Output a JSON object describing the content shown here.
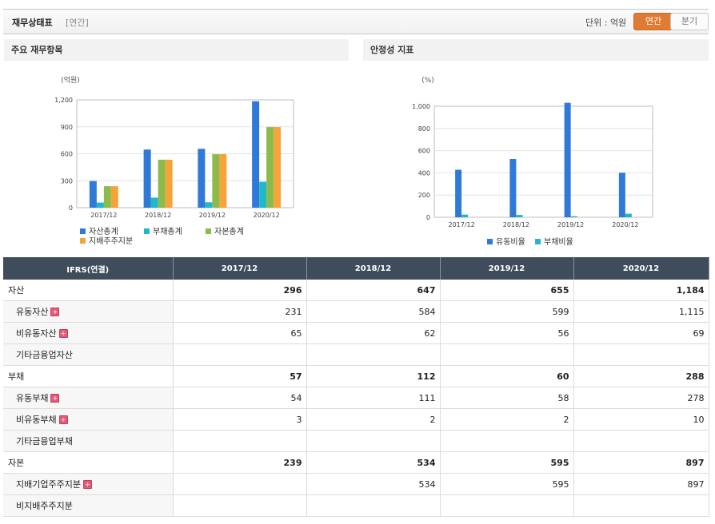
{
  "header": {
    "title": "재무상태표",
    "period": "[연간]",
    "unit_label": "단위 : 억원",
    "tab_annual": "연간",
    "tab_quarter": "분기"
  },
  "chart_data": [
    {
      "type": "bar",
      "title": "주요 재무항목",
      "ylabel": "(억원)",
      "ylim": [
        0,
        1200
      ],
      "yticks": [
        "0",
        "300",
        "600",
        "900",
        "1,200"
      ],
      "categories": [
        "2017/12",
        "2018/12",
        "2019/12",
        "2020/12"
      ],
      "series": [
        {
          "name": "자산총계",
          "color": "#2f79d8",
          "values": [
            296,
            647,
            655,
            1184
          ]
        },
        {
          "name": "부채총계",
          "color": "#22b8cc",
          "values": [
            57,
            112,
            60,
            288
          ]
        },
        {
          "name": "자본총계",
          "color": "#8cbb4c",
          "values": [
            239,
            534,
            595,
            897
          ]
        },
        {
          "name": "지배주주지분",
          "color": "#f6a43a",
          "values": [
            239,
            534,
            595,
            897
          ]
        }
      ],
      "legend": "bottom-left",
      "grid": true
    },
    {
      "type": "bar",
      "title": "안정성 지표",
      "ylabel": "(%)",
      "ylim": [
        0,
        1000
      ],
      "yticks": [
        "0",
        "200",
        "400",
        "600",
        "800",
        "1,000"
      ],
      "categories": [
        "2017/12",
        "2018/12",
        "2019/12",
        "2020/12"
      ],
      "series": [
        {
          "name": "유동비율",
          "color": "#2f79d8",
          "values": [
            428,
            525,
            1031,
            401
          ]
        },
        {
          "name": "부채비율",
          "color": "#22b8cc",
          "values": [
            24,
            21,
            10,
            32
          ]
        }
      ],
      "legend": "bottom-center",
      "grid": true
    }
  ],
  "table": {
    "header": [
      "IFRS(연결)",
      "2017/12",
      "2018/12",
      "2019/12",
      "2020/12"
    ],
    "rows": [
      {
        "label": "자산",
        "type": "main",
        "expand": false,
        "values": [
          "296",
          "647",
          "655",
          "1,184"
        ]
      },
      {
        "label": "유동자산",
        "type": "sub",
        "expand": true,
        "values": [
          "231",
          "584",
          "599",
          "1,115"
        ]
      },
      {
        "label": "비유동자산",
        "type": "sub",
        "expand": true,
        "values": [
          "65",
          "62",
          "56",
          "69"
        ]
      },
      {
        "label": "기타금융업자산",
        "type": "sub",
        "expand": false,
        "values": [
          "",
          "",
          "",
          ""
        ]
      },
      {
        "label": "부채",
        "type": "main",
        "expand": false,
        "values": [
          "57",
          "112",
          "60",
          "288"
        ]
      },
      {
        "label": "유동부채",
        "type": "sub",
        "expand": true,
        "values": [
          "54",
          "111",
          "58",
          "278"
        ]
      },
      {
        "label": "비유동부채",
        "type": "sub",
        "expand": true,
        "values": [
          "3",
          "2",
          "2",
          "10"
        ]
      },
      {
        "label": "기타금융업부채",
        "type": "sub",
        "expand": false,
        "values": [
          "",
          "",
          "",
          ""
        ]
      },
      {
        "label": "자본",
        "type": "main",
        "expand": false,
        "values": [
          "239",
          "534",
          "595",
          "897"
        ]
      },
      {
        "label": "지배기업주주지분",
        "type": "sub",
        "expand": true,
        "values": [
          "",
          "534",
          "595",
          "897"
        ]
      },
      {
        "label": "비지배주주지분",
        "type": "sub",
        "expand": false,
        "values": [
          "",
          "",
          "",
          ""
        ]
      }
    ]
  }
}
